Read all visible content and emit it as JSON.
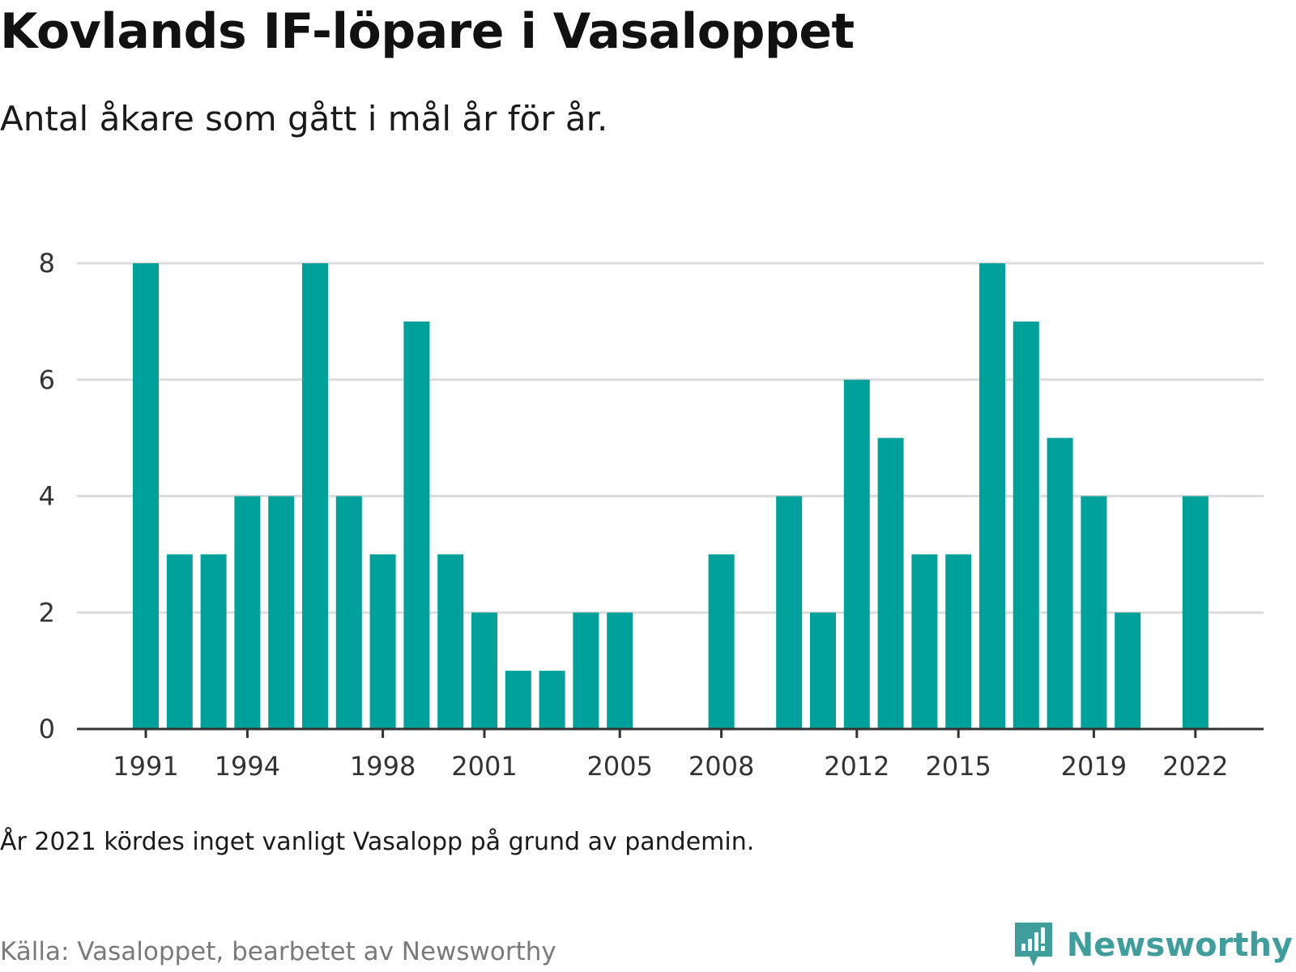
{
  "title": "Kovlands IF-löpare i Vasaloppet",
  "subtitle": "Antal åkare som gått i mål år för år.",
  "note": "År 2021 kördes inget vanligt Vasalopp på grund av pandemin.",
  "source": "Källa: Vasaloppet, bearbetet av Newsworthy",
  "brand": {
    "name": "Newsworthy",
    "icon": "newsworthy-logo-icon"
  },
  "colors": {
    "bar": "#00a19a",
    "grid": "#dcdcdc",
    "axis": "#333333",
    "brand": "#3f9e9c"
  },
  "chart_data": {
    "type": "bar",
    "categories": [
      "1991",
      "1992",
      "1993",
      "1994",
      "1995",
      "1996",
      "1997",
      "1998",
      "1999",
      "2000",
      "2001",
      "2002",
      "2003",
      "2004",
      "2005",
      "2006",
      "2007",
      "2008",
      "2009",
      "2010",
      "2011",
      "2012",
      "2013",
      "2014",
      "2015",
      "2016",
      "2017",
      "2018",
      "2019",
      "2020",
      "2021",
      "2022"
    ],
    "values": [
      8,
      3,
      3,
      4,
      4,
      8,
      4,
      3,
      7,
      3,
      2,
      1,
      1,
      2,
      2,
      0,
      0,
      3,
      0,
      4,
      2,
      6,
      5,
      3,
      3,
      8,
      7,
      5,
      4,
      2,
      0,
      4
    ],
    "x_tick_labels": [
      "1991",
      "1994",
      "1998",
      "2001",
      "2005",
      "2008",
      "2012",
      "2015",
      "2019",
      "2022"
    ],
    "y_ticks": [
      0,
      2,
      4,
      6,
      8
    ],
    "ylim": [
      0,
      8
    ],
    "grid": true,
    "xlabel": "",
    "ylabel": ""
  }
}
